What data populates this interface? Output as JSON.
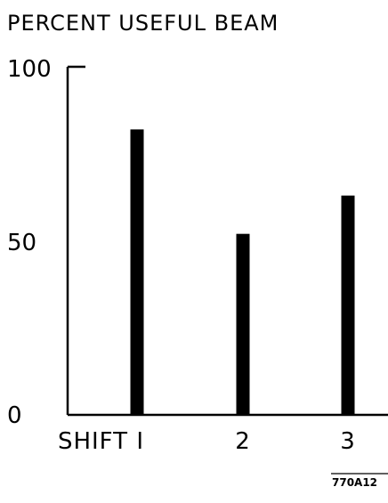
{
  "chart_data": {
    "type": "bar",
    "title": "PERCENT USEFUL BEAM",
    "xlabel": "",
    "ylabel": "",
    "categories": [
      "SHIFT I",
      "2",
      "3"
    ],
    "values": [
      82,
      52,
      63
    ],
    "ylim": [
      0,
      100
    ],
    "yticks": [
      "0",
      "50",
      "100"
    ],
    "grid": false,
    "bar_color": "#000000"
  },
  "figure_code": "770A12"
}
